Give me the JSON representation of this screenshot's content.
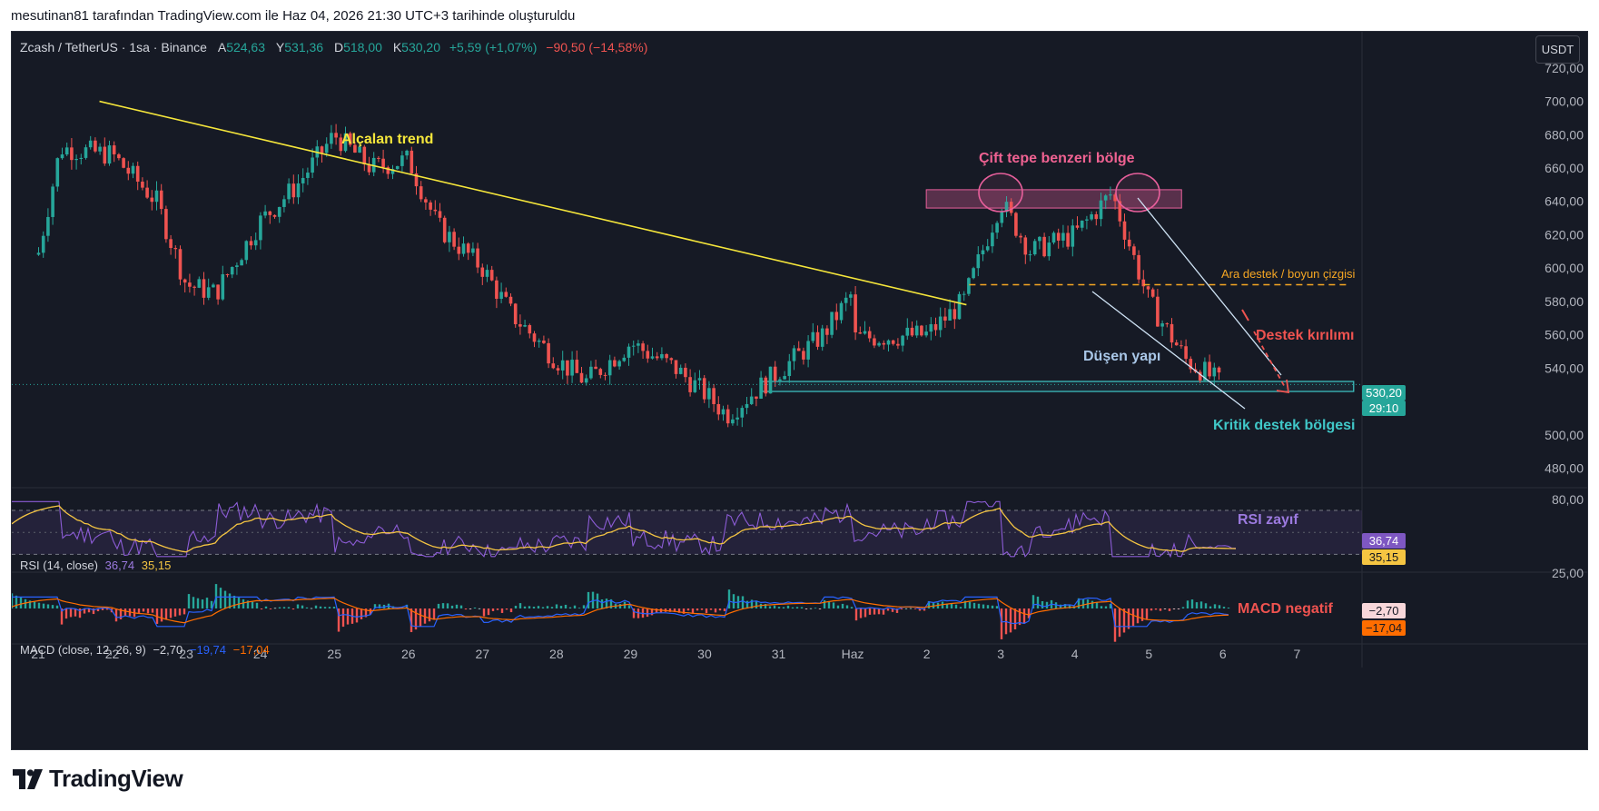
{
  "header": {
    "caption": "mesutinan81 tarafından TradingView.com ile Haz 04, 2026 21:30 UTC+3 tarihinde oluşturuldu"
  },
  "symbol": {
    "name": "Zcash / TetherUS · 1sa · Binance",
    "open_label": "A",
    "open": "524,63",
    "high_label": "Y",
    "high": "531,36",
    "low_label": "D",
    "low": "518,00",
    "close_label": "K",
    "close": "530,20",
    "change": "+5,59 (+1,07%)",
    "period_change": "−90,50 (−14,58%)"
  },
  "currency_button": "USDT",
  "colors": {
    "background": "#161a25",
    "up": "#26a69a",
    "down": "#ef5350",
    "trendline": "#f5e63b",
    "pink_zone": "#e75f9b",
    "support": "#40c8c8",
    "neck_line": "#f5a623",
    "rsi": "#8c5cd6",
    "rsi_ma": "#f5c542",
    "macd": "#2962ff",
    "macd_signal": "#ff6d00"
  },
  "price_axis": {
    "ticks": [
      "720,00",
      "700,00",
      "680,00",
      "660,00",
      "640,00",
      "620,00",
      "600,00",
      "580,00",
      "560,00",
      "540,00",
      "500,00",
      "480,00"
    ],
    "last_price": "530,20",
    "countdown": "29:10"
  },
  "time_axis": {
    "ticks": [
      "21",
      "22",
      "23",
      "24",
      "25",
      "26",
      "27",
      "28",
      "29",
      "30",
      "31",
      "Haz",
      "2",
      "3",
      "4",
      "5",
      "6",
      "7"
    ]
  },
  "rsi": {
    "legend_title": "RSI (14, close)",
    "rsi_value": "36,74",
    "ma_value": "35,15",
    "axis_ticks": [
      "80,00",
      "25,00"
    ],
    "note": "RSI zayıf"
  },
  "macd": {
    "legend_title": "MACD (close, 12, 26, 9)",
    "hist_value": "−2,70",
    "macd_value": "−19,74",
    "signal_value": "−17,04",
    "tag_hist": "−2,70",
    "tag_signal": "−17,04",
    "note": "MACD negatif"
  },
  "annotations": {
    "downtrend": "Alçalan trend",
    "double_top": "Çift tepe benzeri bölge",
    "neck_line": "Ara destek / boyun çizgisi",
    "support_break": "Destek kırılımı",
    "falling_structure": "Düşen yapı",
    "critical_support": "Kritik destek bölgesi"
  },
  "footer": {
    "brand": "TradingView"
  },
  "chart_data": {
    "type": "candlestick",
    "title": "Zcash / TetherUS · 1sa · Binance",
    "x_labels": [
      "21",
      "22",
      "23",
      "24",
      "25",
      "26",
      "27",
      "28",
      "29",
      "30",
      "31",
      "Haz",
      "2",
      "3",
      "4",
      "5",
      "6",
      "7"
    ],
    "ylim": [
      470,
      730
    ],
    "price_path": [
      {
        "x": "21",
        "y": 608
      },
      {
        "x": "21.3",
        "y": 672
      },
      {
        "x": "22",
        "y": 668
      },
      {
        "x": "22.6",
        "y": 640
      },
      {
        "x": "23",
        "y": 590
      },
      {
        "x": "23.4",
        "y": 585
      },
      {
        "x": "24",
        "y": 628
      },
      {
        "x": "24.5",
        "y": 650
      },
      {
        "x": "25",
        "y": 680
      },
      {
        "x": "25.5",
        "y": 660
      },
      {
        "x": "26",
        "y": 665
      },
      {
        "x": "26.4",
        "y": 625
      },
      {
        "x": "27",
        "y": 600
      },
      {
        "x": "27.4",
        "y": 572
      },
      {
        "x": "28",
        "y": 545
      },
      {
        "x": "28.4",
        "y": 532
      },
      {
        "x": "29",
        "y": 555
      },
      {
        "x": "29.6",
        "y": 540
      },
      {
        "x": "30",
        "y": 525
      },
      {
        "x": "30.3",
        "y": 512
      },
      {
        "x": "31",
        "y": 538
      },
      {
        "x": "31.6",
        "y": 560
      },
      {
        "x": "Haz",
        "y": 585
      },
      {
        "x": "1.5",
        "y": 535
      },
      {
        "x": "2",
        "y": 560
      },
      {
        "x": "2.5",
        "y": 580
      },
      {
        "x": "3",
        "y": 640
      },
      {
        "x": "3.4",
        "y": 610
      },
      {
        "x": "4",
        "y": 620
      },
      {
        "x": "4.5",
        "y": 645
      },
      {
        "x": "5",
        "y": 580
      },
      {
        "x": "5.5",
        "y": 545
      },
      {
        "x": "6",
        "y": 530
      }
    ],
    "downtrend_line": {
      "start": {
        "x": "22",
        "y": 700
      },
      "end": {
        "x": "2.5",
        "y": 578
      }
    },
    "double_top_zone": {
      "from": "3",
      "to": "5",
      "low": 636,
      "high": 647
    },
    "neck_line_level": 590,
    "critical_support_zone": {
      "from": "31",
      "to": "6",
      "low": 526,
      "high": 532
    },
    "last_price": 530.2,
    "rsi": {
      "value": 36.74,
      "ma": 35.15,
      "overbought": 70,
      "oversold": 30,
      "range": [
        20,
        85
      ]
    },
    "macd": {
      "params": [
        12,
        26,
        9
      ],
      "histogram": -2.7,
      "macd": -19.74,
      "signal": -17.04
    }
  }
}
